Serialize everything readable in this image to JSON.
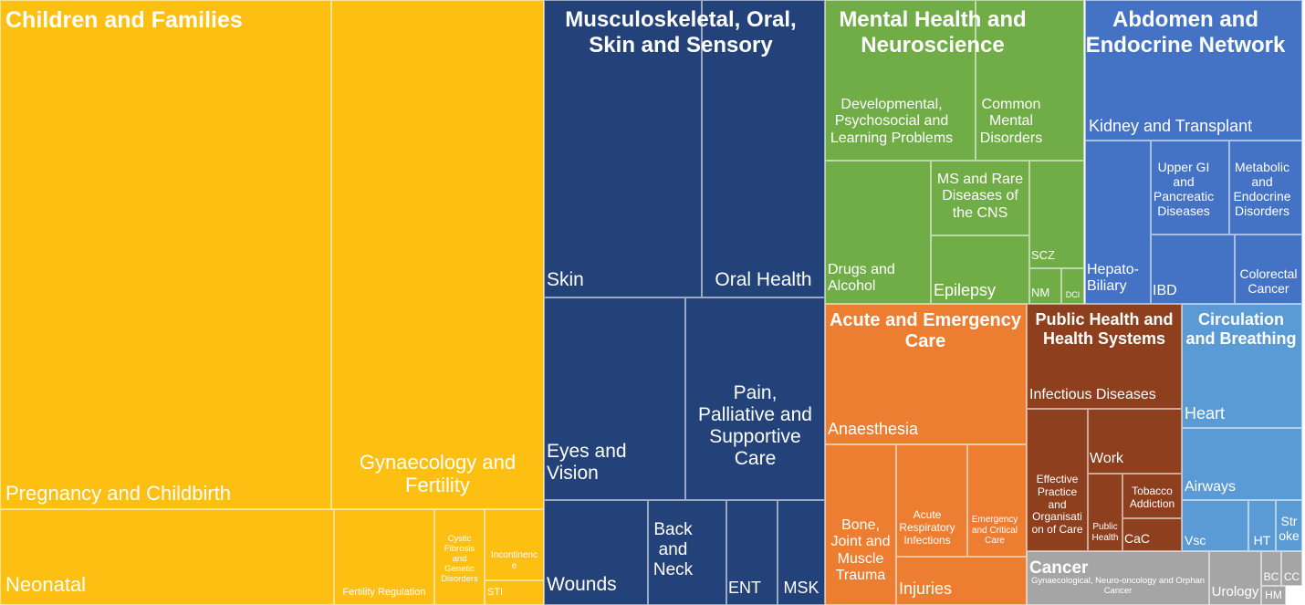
{
  "chart_data": {
    "type": "treemap",
    "colors": {
      "children_and_families": "#FCBF12",
      "musculoskeletal": "#23427A",
      "mental_health": "#70AD47",
      "abdomen": "#4472C4",
      "acute": "#ED7D31",
      "public_health": "#8E3F1E",
      "circulation": "#5B9BD5",
      "cancer": "#A5A5A5"
    },
    "groups": [
      {
        "name": "Children and Families",
        "color_key": "children_and_families",
        "children": [
          "Pregnancy and Childbirth",
          "Gynaecology and Fertility",
          "Neonatal",
          "Fertility Regulation",
          "Cystic Fibrosis and Genetic Disorders",
          "Incontinence",
          "STI"
        ]
      },
      {
        "name": "Musculoskeletal, Oral, Skin and Sensory",
        "color_key": "musculoskeletal",
        "children": [
          "Skin",
          "Oral Health",
          "Eyes and Vision",
          "Pain, Palliative and Supportive Care",
          "Wounds",
          "Back and Neck",
          "ENT",
          "MSK"
        ]
      },
      {
        "name": "Mental Health and Neuroscience",
        "color_key": "mental_health",
        "children": [
          "Developmental, Psychosocial and Learning Problems",
          "Common Mental Disorders",
          "Drugs and Alcohol",
          "MS and Rare Diseases of the CNS",
          "Epilepsy",
          "SCZ",
          "NM",
          "DCI"
        ]
      },
      {
        "name": "Abdomen and Endocrine Network",
        "color_key": "abdomen",
        "children": [
          "Kidney and Transplant",
          "Upper GI and Pancreatic Diseases",
          "Metabolic and Endocrine Disorders",
          "Hepato-Biliary",
          "IBD",
          "Colorectal Cancer"
        ]
      },
      {
        "name": "Acute and Emergency Care",
        "color_key": "acute",
        "children": [
          "Anaesthesia",
          "Bone, Joint and Muscle Trauma",
          "Acute Respiratory Infections",
          "Emergency and Critical Care",
          "Injuries"
        ]
      },
      {
        "name": "Public Health and Health Systems",
        "color_key": "public_health",
        "children": [
          "Infectious Diseases",
          "Effective Practice and Organisation of Care",
          "Work",
          "Tobacco Addiction",
          "Public Health",
          "CaC"
        ]
      },
      {
        "name": "Circulation and Breathing",
        "color_key": "circulation",
        "children": [
          "Heart",
          "Airways",
          "Vsc",
          "HT",
          "Stroke"
        ]
      },
      {
        "name": "Cancer",
        "color_key": "cancer",
        "children": [
          "Gynaecological, Neuro-oncology and Orphan Cancer",
          "Urology",
          "BC",
          "CC",
          "HM"
        ]
      }
    ]
  }
}
